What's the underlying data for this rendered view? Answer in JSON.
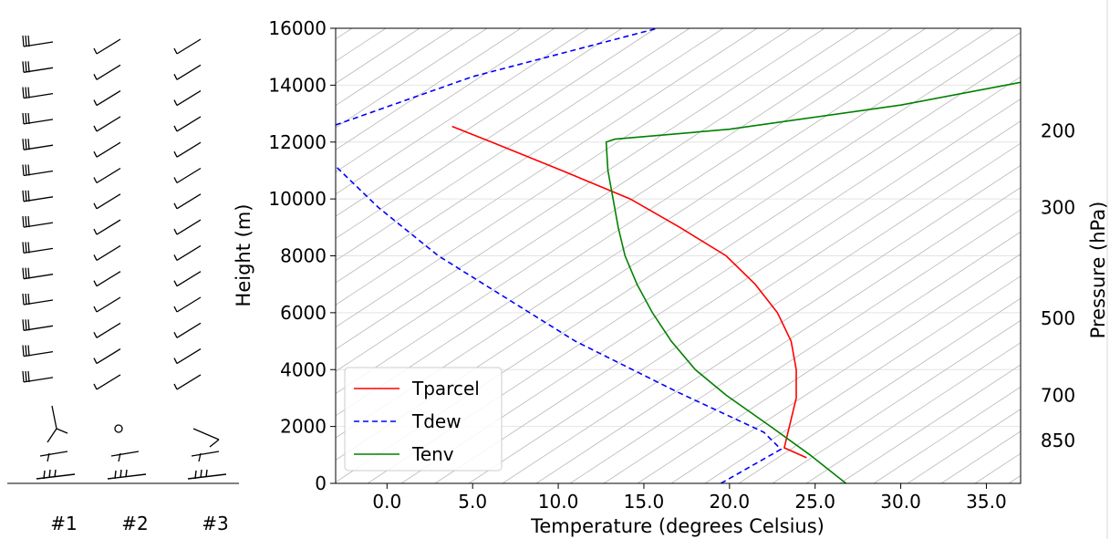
{
  "chart_data": [
    {
      "type": "line",
      "chart_name": "skew-t sounding",
      "xlabel": "Temperature (degrees Celsius)",
      "ylabel": "Height (m)",
      "y2label": "Pressure (hPa)",
      "xlim": [
        -3,
        37
      ],
      "ylim": [
        0,
        16000
      ],
      "x_ticks": [
        0,
        5,
        10,
        15,
        20,
        25,
        30,
        35
      ],
      "x_tick_labels": [
        "0.0",
        "5.0",
        "10.0",
        "15.0",
        "20.0",
        "25.0",
        "30.0",
        "35.0"
      ],
      "y_ticks": [
        0,
        2000,
        4000,
        6000,
        8000,
        10000,
        12000,
        14000,
        16000
      ],
      "y_tick_labels": [
        "0",
        "2000",
        "4000",
        "6000",
        "8000",
        "10000",
        "12000",
        "14000",
        "16000"
      ],
      "pressure_ticks": [
        {
          "label": "850",
          "height": 1500
        },
        {
          "label": "700",
          "height": 3100
        },
        {
          "label": "500",
          "height": 5800
        },
        {
          "label": "300",
          "height": 9700
        },
        {
          "label": "200",
          "height": 12400
        }
      ],
      "skew_isotherms": true,
      "horizontal_grid": true,
      "legend_position": "lower-left",
      "series": [
        {
          "name": "Tparcel",
          "color": "#ff0000",
          "style": "solid",
          "points": [
            {
              "x": 24.5,
              "y": 900
            },
            {
              "x": 23.2,
              "y": 1250
            },
            {
              "x": 23.5,
              "y": 2000
            },
            {
              "x": 23.9,
              "y": 3000
            },
            {
              "x": 23.9,
              "y": 4000
            },
            {
              "x": 23.6,
              "y": 5000
            },
            {
              "x": 22.8,
              "y": 6000
            },
            {
              "x": 21.5,
              "y": 7000
            },
            {
              "x": 19.8,
              "y": 8000
            },
            {
              "x": 17.1,
              "y": 9000
            },
            {
              "x": 14.2,
              "y": 10000
            },
            {
              "x": 10.2,
              "y": 11000
            },
            {
              "x": 6.1,
              "y": 12000
            },
            {
              "x": 3.8,
              "y": 12550
            }
          ]
        },
        {
          "name": "Tdew",
          "color": "#0000ff",
          "style": "dashed",
          "segments": [
            [
              {
                "x": 19.5,
                "y": 0
              },
              {
                "x": 23.0,
                "y": 1200
              },
              {
                "x": 22.0,
                "y": 1800
              },
              {
                "x": 17.0,
                "y": 3200
              },
              {
                "x": 11.0,
                "y": 5000
              },
              {
                "x": 3.0,
                "y": 8000
              },
              {
                "x": -0.5,
                "y": 9700
              },
              {
                "x": -3.0,
                "y": 11150
              }
            ],
            [
              {
                "x": -3.0,
                "y": 12600
              },
              {
                "x": 5.0,
                "y": 14300
              },
              {
                "x": 15.8,
                "y": 16000
              }
            ]
          ]
        },
        {
          "name": "Tenv",
          "color": "#008000",
          "style": "solid",
          "points": [
            {
              "x": 26.8,
              "y": 0
            },
            {
              "x": 24.7,
              "y": 1000
            },
            {
              "x": 22.4,
              "y": 2000
            },
            {
              "x": 19.8,
              "y": 3100
            },
            {
              "x": 18.0,
              "y": 4000
            },
            {
              "x": 16.6,
              "y": 5000
            },
            {
              "x": 15.5,
              "y": 6000
            },
            {
              "x": 14.6,
              "y": 7000
            },
            {
              "x": 13.9,
              "y": 8000
            },
            {
              "x": 13.5,
              "y": 9000
            },
            {
              "x": 13.2,
              "y": 10000
            },
            {
              "x": 12.9,
              "y": 11000
            },
            {
              "x": 12.8,
              "y": 12000
            },
            {
              "x": 13.3,
              "y": 12100
            },
            {
              "x": 20.0,
              "y": 12450
            },
            {
              "x": 30.0,
              "y": 13300
            },
            {
              "x": 37.0,
              "y": 14100
            }
          ]
        }
      ]
    },
    {
      "type": "wind-barbs",
      "columns": [
        {
          "label": "#1",
          "upper_barb": "three-long-flag",
          "surface_barb": "crossed-flags"
        },
        {
          "label": "#2",
          "upper_barb": "single-short-flag",
          "surface_barb": "crossed-flags",
          "calm_marker_height_index": 1
        },
        {
          "label": "#3",
          "upper_barb": "single-short-flag",
          "surface_barb": "crossed-flags"
        }
      ]
    }
  ]
}
